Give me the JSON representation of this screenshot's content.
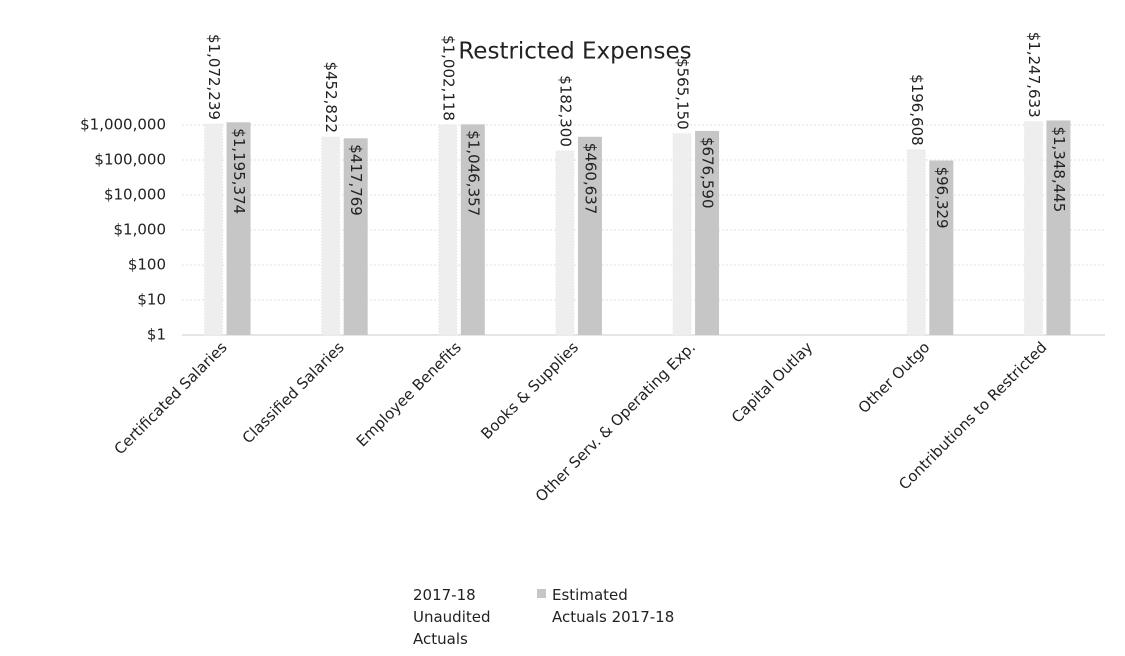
{
  "chart_data": {
    "type": "bar",
    "title": "Restricted Expenses",
    "categories": [
      "Certificated Salaries",
      "Classified Salaries",
      "Employee Benefits",
      "Books & Supplies",
      "Other Serv. & Operating Exp.",
      "Capital Outlay",
      "Other Outgo",
      "Contributions to Restricted"
    ],
    "series": [
      {
        "name": "2017-18 Unaudited Actuals",
        "color": "#eeeeee",
        "values": [
          1072239,
          452822,
          1002118,
          182300,
          565150,
          null,
          196608,
          1247633
        ],
        "value_labels": [
          "$1,072,239",
          "$452,822",
          "$1,002,118",
          "$182,300",
          "$565,150",
          null,
          "$196,608",
          "$1,247,633"
        ]
      },
      {
        "name": "Estimated Actuals 2017-18",
        "color": "#c6c6c6",
        "values": [
          1195374,
          417769,
          1046357,
          460637,
          676590,
          null,
          96329,
          1348445
        ],
        "value_labels": [
          "$1,195,374",
          "$417,769",
          "$1,046,357",
          "$460,637",
          "$676,590",
          null,
          "$96,329",
          "$1,348,445"
        ]
      }
    ],
    "log_scale": true,
    "ylim": [
      1,
      1000000
    ],
    "yticks": [
      {
        "value": 1,
        "label": "$1"
      },
      {
        "value": 10,
        "label": "$10"
      },
      {
        "value": 100,
        "label": "$100"
      },
      {
        "value": 1000,
        "label": "$1,000"
      },
      {
        "value": 10000,
        "label": "$10,000"
      },
      {
        "value": 100000,
        "label": "$100,000"
      },
      {
        "value": 1000000,
        "label": "$1,000,000"
      }
    ],
    "grid": true,
    "legend": "bottom"
  }
}
